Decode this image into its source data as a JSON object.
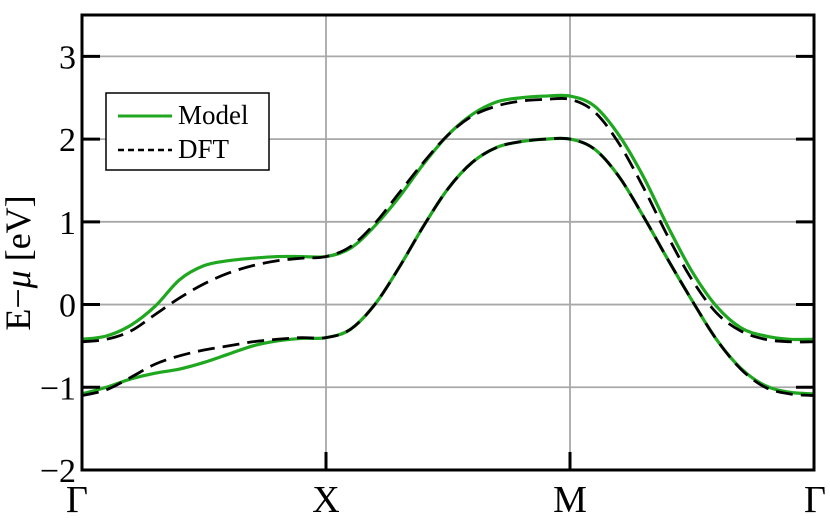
{
  "chart_data": {
    "type": "line",
    "title": "",
    "xlabel": "",
    "ylabel": "E−μ  [eV]",
    "ylabel_main": "E−",
    "ylabel_mu": "μ",
    "ylabel_unit": " [eV]",
    "xlim": [
      0,
      3
    ],
    "ylim": [
      -2,
      3.5
    ],
    "yticks": [
      -2,
      -1,
      0,
      1,
      2,
      3
    ],
    "ytick_labels": [
      "−2",
      "−1",
      "0",
      "1",
      "2",
      "3"
    ],
    "xticks": [
      0,
      1,
      2,
      3
    ],
    "xtick_labels": [
      "Γ",
      "X",
      "M",
      "Γ"
    ],
    "grid": true,
    "legend": {
      "position": "top-left",
      "entries": [
        "Model",
        "DFT"
      ]
    },
    "colors": {
      "model": "#1fa81f",
      "dft": "#000000",
      "grid": "#a8a8a8"
    },
    "series": [
      {
        "name": "Model",
        "style": "solid",
        "band": "upper",
        "x": [
          0,
          0.1,
          0.2,
          0.3,
          0.4,
          0.5,
          0.6,
          0.7,
          0.8,
          0.9,
          1.0,
          1.1,
          1.2,
          1.3,
          1.4,
          1.5,
          1.6,
          1.7,
          1.8,
          1.9,
          2.0,
          2.1,
          2.2,
          2.3,
          2.4,
          2.5,
          2.6,
          2.7,
          2.8,
          2.9,
          3.0
        ],
        "y": [
          -0.42,
          -0.38,
          -0.25,
          -0.02,
          0.3,
          0.47,
          0.53,
          0.56,
          0.58,
          0.58,
          0.58,
          0.68,
          0.95,
          1.3,
          1.7,
          2.05,
          2.3,
          2.45,
          2.5,
          2.52,
          2.52,
          2.4,
          2.05,
          1.55,
          0.95,
          0.4,
          -0.02,
          -0.28,
          -0.38,
          -0.42,
          -0.42
        ]
      },
      {
        "name": "DFT",
        "style": "dashed",
        "band": "upper",
        "x": [
          0,
          0.1,
          0.2,
          0.3,
          0.4,
          0.5,
          0.6,
          0.7,
          0.8,
          0.9,
          1.0,
          1.1,
          1.2,
          1.3,
          1.4,
          1.5,
          1.6,
          1.7,
          1.8,
          1.9,
          2.0,
          2.1,
          2.2,
          2.3,
          2.4,
          2.5,
          2.6,
          2.7,
          2.8,
          2.9,
          3.0
        ],
        "y": [
          -0.45,
          -0.42,
          -0.32,
          -0.12,
          0.08,
          0.25,
          0.38,
          0.47,
          0.53,
          0.56,
          0.58,
          0.7,
          0.98,
          1.35,
          1.72,
          2.05,
          2.28,
          2.4,
          2.46,
          2.48,
          2.48,
          2.33,
          1.95,
          1.42,
          0.83,
          0.3,
          -0.1,
          -0.32,
          -0.42,
          -0.45,
          -0.45
        ]
      },
      {
        "name": "Model",
        "style": "solid",
        "band": "lower",
        "x": [
          0,
          0.1,
          0.2,
          0.3,
          0.4,
          0.5,
          0.6,
          0.7,
          0.8,
          0.9,
          1.0,
          1.1,
          1.2,
          1.3,
          1.4,
          1.5,
          1.6,
          1.7,
          1.8,
          1.9,
          2.0,
          2.1,
          2.2,
          2.3,
          2.4,
          2.5,
          2.6,
          2.7,
          2.8,
          2.9,
          3.0
        ],
        "y": [
          -1.08,
          -1.0,
          -0.9,
          -0.83,
          -0.78,
          -0.7,
          -0.6,
          -0.5,
          -0.44,
          -0.41,
          -0.4,
          -0.3,
          0.0,
          0.45,
          0.95,
          1.4,
          1.72,
          1.9,
          1.97,
          2.0,
          2.0,
          1.88,
          1.55,
          1.07,
          0.55,
          0.05,
          -0.42,
          -0.77,
          -0.98,
          -1.06,
          -1.08
        ]
      },
      {
        "name": "DFT",
        "style": "dashed",
        "band": "lower",
        "x": [
          0,
          0.1,
          0.2,
          0.3,
          0.4,
          0.5,
          0.6,
          0.7,
          0.8,
          0.9,
          1.0,
          1.1,
          1.2,
          1.3,
          1.4,
          1.5,
          1.6,
          1.7,
          1.8,
          1.9,
          2.0,
          2.1,
          2.2,
          2.3,
          2.4,
          2.5,
          2.6,
          2.7,
          2.8,
          2.9,
          3.0
        ],
        "y": [
          -1.1,
          -1.03,
          -0.88,
          -0.72,
          -0.62,
          -0.55,
          -0.5,
          -0.45,
          -0.42,
          -0.4,
          -0.4,
          -0.3,
          0.0,
          0.45,
          0.95,
          1.4,
          1.72,
          1.9,
          1.97,
          2.0,
          2.0,
          1.88,
          1.55,
          1.07,
          0.55,
          0.05,
          -0.42,
          -0.78,
          -1.0,
          -1.08,
          -1.1
        ]
      }
    ]
  }
}
